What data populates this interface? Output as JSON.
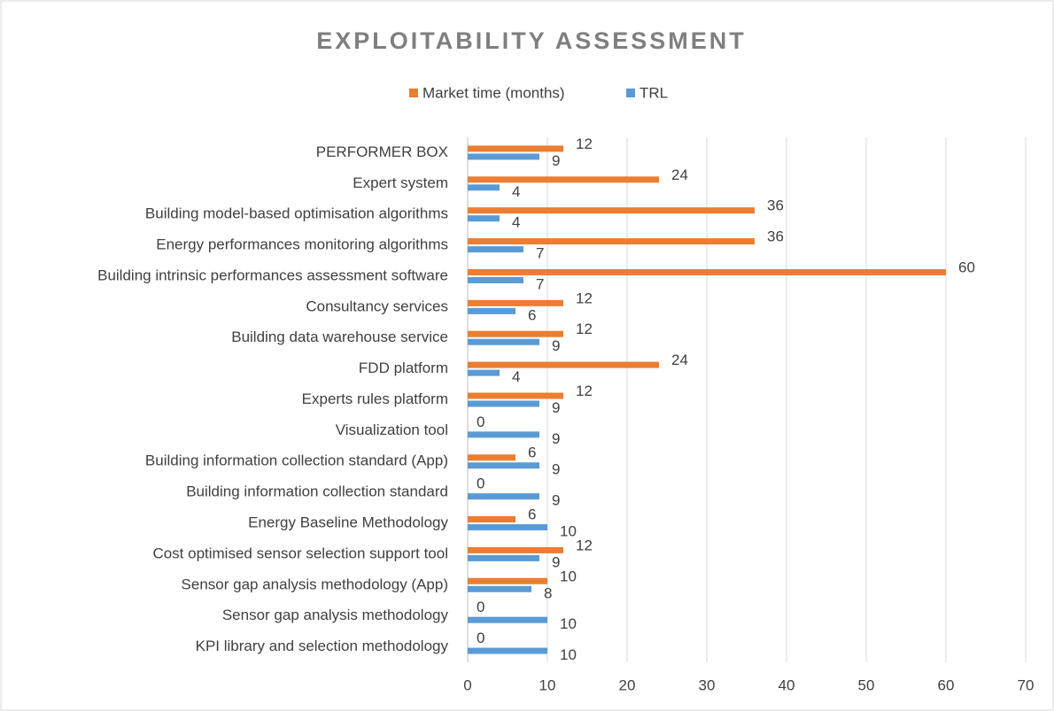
{
  "chart_data": {
    "type": "hbar",
    "title": "EXPLOITABILITY ASSESSMENT",
    "categories": [
      "PERFORMER BOX",
      "Expert system",
      "Building model-based optimisation algorithms",
      "Energy performances monitoring algorithms",
      "Building intrinsic performances assessment software",
      "Consultancy services",
      "Building data warehouse service",
      "FDD platform",
      "Experts rules platform",
      "Visualization tool",
      "Building information collection standard (App)",
      "Building information collection standard",
      "Energy Baseline Methodology",
      "Cost optimised sensor selection support tool",
      "Sensor gap analysis methodology (App)",
      "Sensor gap analysis methodology",
      "KPI library and selection methodology"
    ],
    "series": [
      {
        "name": "Market time (months)",
        "color": "#ed7d31",
        "values": [
          12,
          24,
          36,
          36,
          60,
          12,
          12,
          24,
          12,
          0,
          6,
          0,
          6,
          12,
          10,
          0,
          0
        ]
      },
      {
        "name": "TRL",
        "color": "#5b9bd5",
        "values": [
          9,
          4,
          4,
          7,
          7,
          6,
          9,
          4,
          9,
          9,
          9,
          9,
          10,
          9,
          8,
          10,
          10
        ]
      }
    ],
    "xlim": [
      0,
      70
    ],
    "xticks": [
      0,
      10,
      20,
      30,
      40,
      50,
      60,
      70
    ],
    "grid": true,
    "legend": "top"
  }
}
